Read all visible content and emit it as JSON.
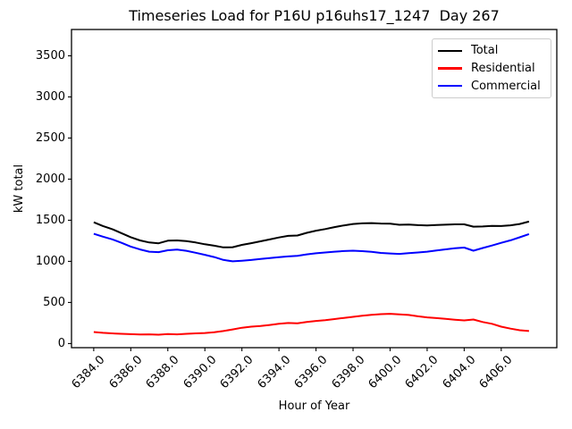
{
  "title": "Timeseries Load for P16U p16uhs17_1247  Day 267",
  "chart_data": {
    "type": "line",
    "title": "Timeseries Load for P16U p16uhs17_1247  Day 267",
    "xlabel": "Hour of Year",
    "ylabel": "kW total",
    "xlim": [
      6382.8,
      6409.0
    ],
    "ylim": [
      -50,
      3820
    ],
    "grid": false,
    "legend_position": "upper right",
    "x_ticks": [
      {
        "value": 6384,
        "label": "6384.0"
      },
      {
        "value": 6386,
        "label": "6386.0"
      },
      {
        "value": 6388,
        "label": "6388.0"
      },
      {
        "value": 6390,
        "label": "6390.0"
      },
      {
        "value": 6392,
        "label": "6392.0"
      },
      {
        "value": 6394,
        "label": "6394.0"
      },
      {
        "value": 6396,
        "label": "6396.0"
      },
      {
        "value": 6398,
        "label": "6398.0"
      },
      {
        "value": 6400,
        "label": "6400.0"
      },
      {
        "value": 6402,
        "label": "6402.0"
      },
      {
        "value": 6404,
        "label": "6404.0"
      },
      {
        "value": 6406,
        "label": "6406.0"
      }
    ],
    "y_ticks": [
      {
        "value": 0,
        "label": "0"
      },
      {
        "value": 500,
        "label": "500"
      },
      {
        "value": 1000,
        "label": "1000"
      },
      {
        "value": 1500,
        "label": "1500"
      },
      {
        "value": 2000,
        "label": "2000"
      },
      {
        "value": 2500,
        "label": "2500"
      },
      {
        "value": 3000,
        "label": "3000"
      },
      {
        "value": 3500,
        "label": "3500"
      }
    ],
    "x": [
      6384.0,
      6384.5,
      6385.0,
      6385.5,
      6386.0,
      6386.5,
      6387.0,
      6387.5,
      6388.0,
      6388.5,
      6389.0,
      6389.5,
      6390.0,
      6390.5,
      6391.0,
      6391.5,
      6392.0,
      6392.5,
      6393.0,
      6393.5,
      6394.0,
      6394.5,
      6395.0,
      6395.5,
      6396.0,
      6396.5,
      6397.0,
      6397.5,
      6398.0,
      6398.5,
      6399.0,
      6399.5,
      6400.0,
      6400.5,
      6401.0,
      6401.5,
      6402.0,
      6402.5,
      6403.0,
      6403.5,
      6404.0,
      6404.5,
      6405.0,
      6405.5,
      6406.0,
      6406.5,
      6407.0,
      6407.5
    ],
    "series": [
      {
        "name": "Total",
        "color": "#000000",
        "values": [
          1475,
          1430,
          1392,
          1343,
          1294,
          1255,
          1230,
          1220,
          1251,
          1254,
          1246,
          1229,
          1208,
          1190,
          1170,
          1172,
          1200,
          1221,
          1244,
          1266,
          1290,
          1310,
          1314,
          1347,
          1373,
          1393,
          1416,
          1437,
          1455,
          1462,
          1465,
          1460,
          1458,
          1445,
          1448,
          1440,
          1436,
          1442,
          1446,
          1450,
          1450,
          1422,
          1424,
          1432,
          1430,
          1438,
          1454,
          1484
        ]
      },
      {
        "name": "Residential",
        "color": "#ff0000",
        "values": [
          140,
          130,
          124,
          118,
          114,
          110,
          112,
          108,
          116,
          112,
          118,
          124,
          128,
          138,
          152,
          172,
          192,
          205,
          214,
          226,
          240,
          250,
          246,
          262,
          275,
          285,
          298,
          312,
          325,
          338,
          350,
          358,
          362,
          355,
          348,
          332,
          318,
          310,
          300,
          290,
          282,
          292,
          262,
          240,
          205,
          182,
          162,
          152
        ]
      },
      {
        "name": "Commercial",
        "color": "#0000ff",
        "values": [
          1335,
          1300,
          1268,
          1225,
          1180,
          1145,
          1118,
          1112,
          1135,
          1142,
          1128,
          1105,
          1080,
          1052,
          1018,
          1000,
          1008,
          1016,
          1030,
          1040,
          1050,
          1060,
          1068,
          1085,
          1098,
          1108,
          1118,
          1125,
          1130,
          1124,
          1115,
          1102,
          1096,
          1090,
          1100,
          1108,
          1118,
          1132,
          1146,
          1160,
          1168,
          1130,
          1162,
          1192,
          1225,
          1256,
          1292,
          1332
        ]
      }
    ]
  }
}
